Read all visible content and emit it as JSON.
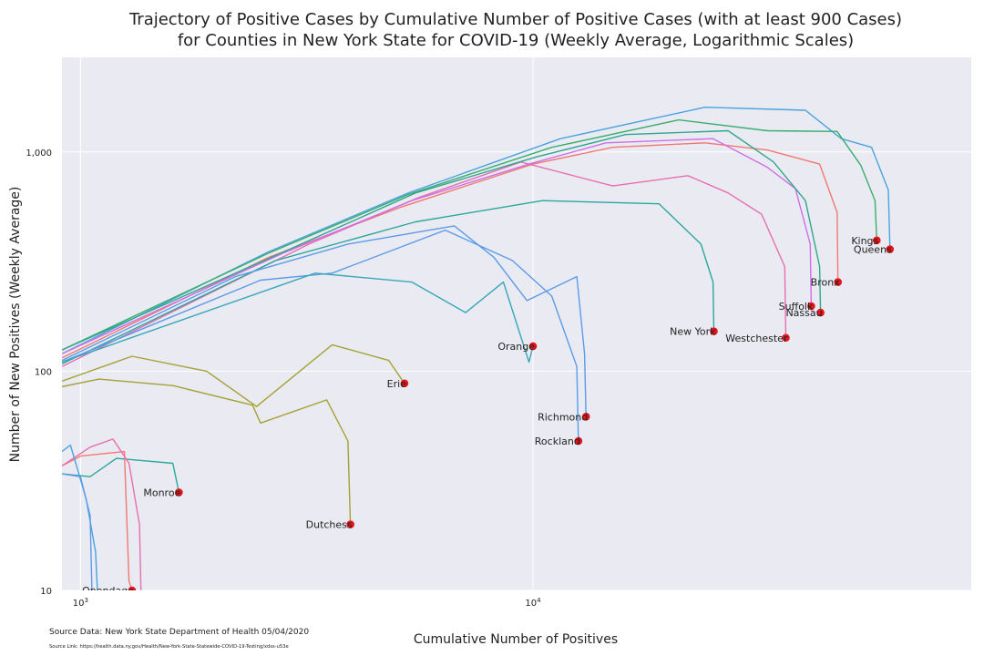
{
  "chart_data": {
    "type": "line",
    "title_line1": "Trajectory of Positive Cases by Cumulative Number of Positive Cases (with at least 900 Cases)",
    "title_line2": "for Counties in New York State for COVID-19 (Weekly Average, Logarithmic Scales)",
    "xlabel": "Cumulative Number of Positives",
    "ylabel": "Number of New Positives (Weekly Average)",
    "xscale": "log",
    "yscale": "log",
    "xlim": [
      910,
      93000
    ],
    "ylim": [
      10,
      2700
    ],
    "grid": true,
    "x_ticks": [
      {
        "value": 1000,
        "base": "10",
        "exp": "3"
      },
      {
        "value": 10000,
        "base": "10",
        "exp": "4"
      }
    ],
    "y_ticks": [
      {
        "value": 10,
        "label": "10"
      },
      {
        "value": 100,
        "label": "100"
      },
      {
        "value": 1000,
        "label": "1,000"
      }
    ],
    "series": [
      {
        "color": "#4aa3df",
        "label": "Queens",
        "points": [
          [
            910,
            120
          ],
          [
            2600,
            350
          ],
          [
            5300,
            650
          ],
          [
            11500,
            1150
          ],
          [
            24000,
            1600
          ],
          [
            40000,
            1550
          ],
          [
            48000,
            1150
          ],
          [
            56000,
            1050
          ],
          [
            61000,
            670
          ],
          [
            61500,
            360
          ]
        ]
      },
      {
        "color": "#3aae6d",
        "label": "Kings",
        "points": [
          [
            910,
            125
          ],
          [
            2600,
            345
          ],
          [
            5300,
            640
          ],
          [
            11000,
            1050
          ],
          [
            21000,
            1400
          ],
          [
            33000,
            1250
          ],
          [
            47000,
            1240
          ],
          [
            53000,
            870
          ],
          [
            57000,
            600
          ],
          [
            57500,
            395
          ]
        ]
      },
      {
        "color": "#f07a6f",
        "label": "Bronx",
        "points": [
          [
            910,
            115
          ],
          [
            2600,
            330
          ],
          [
            5100,
            560
          ],
          [
            10000,
            880
          ],
          [
            15000,
            1050
          ],
          [
            24000,
            1100
          ],
          [
            33000,
            1020
          ],
          [
            43000,
            880
          ],
          [
            47000,
            530
          ],
          [
            47200,
            255
          ]
        ]
      },
      {
        "color": "#e76fb1",
        "label": "Westchester",
        "points": [
          [
            910,
            105
          ],
          [
            3200,
            380
          ],
          [
            5600,
            620
          ],
          [
            9400,
            900
          ],
          [
            15000,
            700
          ],
          [
            22000,
            780
          ],
          [
            27000,
            650
          ],
          [
            32000,
            520
          ],
          [
            36000,
            300
          ],
          [
            36200,
            142
          ]
        ]
      },
      {
        "color": "#cf6fe6",
        "label": "Suffolk",
        "points": [
          [
            910,
            120
          ],
          [
            2800,
            345
          ],
          [
            5400,
            600
          ],
          [
            9800,
            880
          ],
          [
            14500,
            1100
          ],
          [
            25000,
            1150
          ],
          [
            33000,
            850
          ],
          [
            38000,
            680
          ],
          [
            41000,
            380
          ],
          [
            41200,
            198
          ]
        ]
      },
      {
        "color": "#2fa78e",
        "label": "Nassau",
        "points": [
          [
            910,
            125
          ],
          [
            2900,
            360
          ],
          [
            5500,
            650
          ],
          [
            10200,
            950
          ],
          [
            16000,
            1200
          ],
          [
            27000,
            1250
          ],
          [
            34000,
            900
          ],
          [
            40000,
            600
          ],
          [
            43000,
            300
          ],
          [
            43200,
            185
          ]
        ]
      },
      {
        "color": "#2aa89b",
        "label": "New York",
        "points": [
          [
            910,
            108
          ],
          [
            2700,
            320
          ],
          [
            5500,
            480
          ],
          [
            10500,
            600
          ],
          [
            19000,
            580
          ],
          [
            23500,
            380
          ],
          [
            25000,
            255
          ],
          [
            25100,
            152
          ]
        ]
      },
      {
        "color": "#5b9be8",
        "label": "Richmond",
        "points": [
          [
            910,
            112
          ],
          [
            2200,
            270
          ],
          [
            3900,
            380
          ],
          [
            6700,
            460
          ],
          [
            8200,
            330
          ],
          [
            9700,
            210
          ],
          [
            12500,
            270
          ],
          [
            13000,
            120
          ],
          [
            13100,
            62
          ]
        ]
      },
      {
        "color": "#5b9be8",
        "label": "Rockland",
        "points": [
          [
            910,
            110
          ],
          [
            2500,
            260
          ],
          [
            3600,
            280
          ],
          [
            6400,
            440
          ],
          [
            9000,
            320
          ],
          [
            11000,
            220
          ],
          [
            12500,
            105
          ],
          [
            12600,
            48
          ]
        ]
      },
      {
        "color": "#36a8b8",
        "label": "Orange",
        "points": [
          [
            910,
            110
          ],
          [
            3300,
            280
          ],
          [
            5400,
            255
          ],
          [
            7100,
            185
          ],
          [
            8600,
            255
          ],
          [
            9800,
            110
          ],
          [
            10000,
            130
          ]
        ]
      },
      {
        "color": "#a5a135",
        "label": "Erie",
        "points": [
          [
            910,
            90
          ],
          [
            1300,
            117
          ],
          [
            1900,
            100
          ],
          [
            2450,
            69
          ],
          [
            3600,
            132
          ],
          [
            4800,
            112
          ],
          [
            5200,
            88
          ]
        ]
      },
      {
        "color": "#a5a135",
        "label": "Dutchess",
        "points": [
          [
            910,
            85
          ],
          [
            1100,
            92
          ],
          [
            1600,
            86
          ],
          [
            2400,
            70
          ],
          [
            2500,
            58
          ],
          [
            3500,
            74
          ],
          [
            3900,
            48
          ],
          [
            3950,
            20
          ]
        ]
      },
      {
        "color": "#2aa89b",
        "label": "Monroe",
        "points": [
          [
            910,
            34
          ],
          [
            1050,
            33
          ],
          [
            1200,
            40
          ],
          [
            1600,
            38
          ],
          [
            1650,
            28
          ]
        ]
      },
      {
        "color": "#f07a6f",
        "label": "Onondaga",
        "points": [
          [
            910,
            37
          ],
          [
            1000,
            41
          ],
          [
            1250,
            43
          ],
          [
            1280,
            11
          ],
          [
            1300,
            10
          ]
        ]
      },
      {
        "color": "#e76fb1",
        "label": "",
        "points": [
          [
            910,
            37
          ],
          [
            1050,
            45
          ],
          [
            1180,
            49
          ],
          [
            1280,
            38
          ],
          [
            1350,
            20
          ],
          [
            1360,
            10
          ]
        ]
      },
      {
        "color": "#4aa3df",
        "label": "",
        "points": [
          [
            910,
            43
          ],
          [
            950,
            46
          ],
          [
            980,
            37
          ],
          [
            1030,
            26
          ],
          [
            1080,
            15
          ],
          [
            1090,
            10
          ]
        ]
      },
      {
        "color": "#5b9be8",
        "label": "",
        "points": [
          [
            910,
            34
          ],
          [
            1000,
            33
          ],
          [
            1050,
            22
          ],
          [
            1060,
            10
          ]
        ]
      }
    ]
  },
  "source": {
    "data_label": "Source Data: New York State Department of Health 05/04/2020",
    "link_label": "Source Link: https://health.data.ny.gov/Health/New-York-State-Statewide-COVID-19-Testing/xdss-u53e"
  },
  "style": {
    "background": "#eaeaf2",
    "grid_color": "#ffffff",
    "marker_color": "#e3141a"
  }
}
